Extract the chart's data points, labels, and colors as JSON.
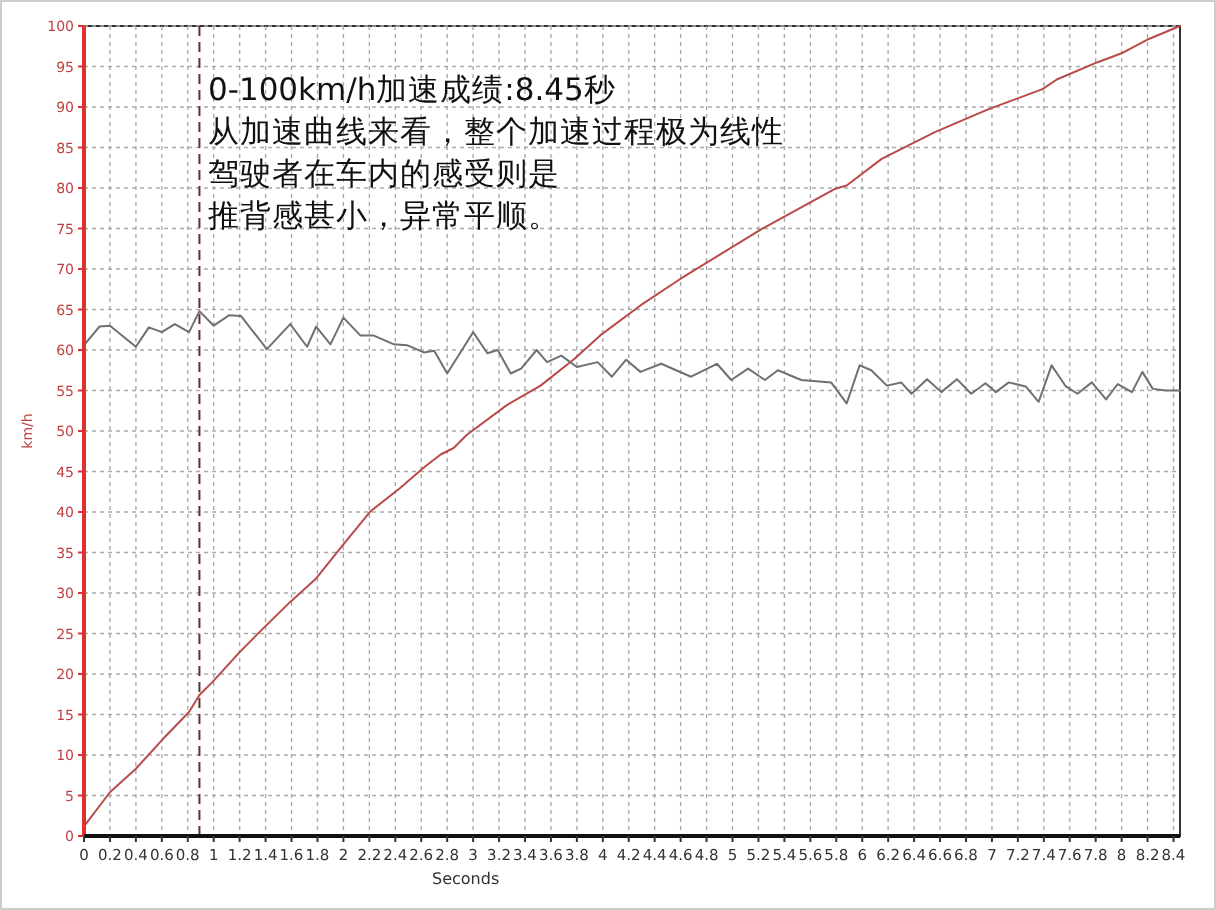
{
  "chart_data": {
    "type": "line",
    "xlabel": "Seconds",
    "ylabel": "km/h",
    "annotations": [
      "0-100km/h加速成绩:8.45秒",
      "从加速曲线来看，整个加速过程极为线性",
      "驾驶者在车内的感受则是",
      "推背感甚小，异常平顺。"
    ],
    "xlim": [
      0,
      8.45
    ],
    "xticks": [
      0,
      0.2,
      0.4,
      0.6,
      0.8,
      1,
      1.2,
      1.4,
      1.6,
      1.8,
      2,
      2.2,
      2.4,
      2.6,
      2.8,
      3,
      3.2,
      3.4,
      3.6,
      3.8,
      4,
      4.2,
      4.4,
      4.6,
      4.8,
      5,
      5.2,
      5.4,
      5.6,
      5.8,
      6,
      6.2,
      6.4,
      6.6,
      6.8,
      7,
      7.2,
      7.4,
      7.6,
      7.8,
      8,
      8.2,
      8.4
    ],
    "ylim": [
      0,
      100
    ],
    "yticks": [
      0,
      5,
      10,
      15,
      20,
      25,
      30,
      35,
      40,
      45,
      50,
      55,
      60,
      65,
      70,
      75,
      80,
      85,
      90,
      95,
      100
    ],
    "grid": true,
    "line_style": "solid",
    "marker": "none",
    "ref_lines": [
      {
        "axis": "x",
        "value": 0.89,
        "line_style": "dashed",
        "color": "#5a3030"
      }
    ],
    "series": [
      {
        "color": "#b84a4a",
        "x": [
          0,
          0.2,
          0.4,
          0.61,
          0.81,
          0.89,
          0.99,
          1.2,
          1.38,
          1.59,
          1.79,
          2.0,
          2.21,
          2.44,
          2.62,
          2.75,
          2.85,
          2.95,
          3.26,
          3.52,
          3.78,
          3.98,
          4.29,
          4.6,
          5.22,
          5.79,
          5.88,
          6.15,
          6.56,
          6.97,
          7.39,
          7.5,
          7.81,
          8.01,
          8.21,
          8.45
        ],
        "values": [
          1.2,
          5.4,
          8.3,
          12,
          15.3,
          17.4,
          19,
          22.7,
          25.6,
          28.9,
          31.8,
          36,
          40.1,
          43,
          45.5,
          47.1,
          47.9,
          49.5,
          53.2,
          55.6,
          58.9,
          61.8,
          65.5,
          68.8,
          74.9,
          79.9,
          80.3,
          83.6,
          86.9,
          89.7,
          92.2,
          93.4,
          95.5,
          96.7,
          98.4,
          100
        ]
      },
      {
        "color": "#707070",
        "x": [
          0,
          0.12,
          0.2,
          0.4,
          0.5,
          0.6,
          0.7,
          0.81,
          0.89,
          1.0,
          1.12,
          1.21,
          1.41,
          1.59,
          1.72,
          1.79,
          1.9,
          2.0,
          2.13,
          2.23,
          2.39,
          2.49,
          2.62,
          2.7,
          2.8,
          3.0,
          3.11,
          3.19,
          3.29,
          3.37,
          3.49,
          3.57,
          3.68,
          3.8,
          3.96,
          4.07,
          4.18,
          4.29,
          4.45,
          4.68,
          4.88,
          4.99,
          5.12,
          5.25,
          5.35,
          5.53,
          5.76,
          5.88,
          5.98,
          6.07,
          6.19,
          6.3,
          6.38,
          6.5,
          6.61,
          6.73,
          6.84,
          6.95,
          7.03,
          7.13,
          7.26,
          7.36,
          7.46,
          7.57,
          7.66,
          7.77,
          7.88,
          7.97,
          8.08,
          8.16,
          8.24,
          8.34,
          8.45
        ],
        "values": [
          60.6,
          62.9,
          63,
          60.4,
          62.8,
          62.2,
          63.2,
          62.2,
          64.8,
          63,
          64.3,
          64.2,
          60.1,
          63.2,
          60.4,
          62.9,
          60.7,
          64,
          61.8,
          61.8,
          60.7,
          60.6,
          59.7,
          59.9,
          57.1,
          62.2,
          59.6,
          60,
          57.1,
          57.7,
          60,
          58.5,
          59.3,
          57.9,
          58.5,
          56.7,
          58.8,
          57.3,
          58.3,
          56.7,
          58.3,
          56.3,
          57.7,
          56.3,
          57.5,
          56.3,
          56,
          53.4,
          58.1,
          57.5,
          55.6,
          56,
          54.6,
          56.4,
          54.8,
          56.4,
          54.6,
          55.9,
          54.8,
          56,
          55.5,
          53.6,
          58.1,
          55.5,
          54.6,
          56,
          53.9,
          55.8,
          54.8,
          57.3,
          55.2,
          55,
          55
        ]
      }
    ]
  }
}
